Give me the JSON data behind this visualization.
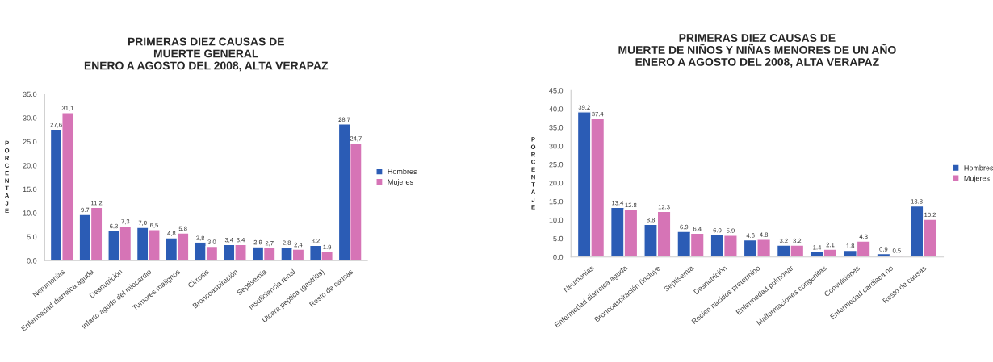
{
  "chart_data": [
    {
      "type": "bar",
      "title": "PRIMERAS DIEZ CAUSAS DE\nMUERTE GENERAL\nENERO A AGOSTO DEL 2008, ALTA VERAPAZ",
      "ylabel": "PORCENTAJE",
      "categories": [
        "Nerumonias",
        "Enfermedad diarreica aguda",
        "Desnutrición",
        "Infarto agudo del miocardio",
        "Tumores malignos",
        "Cirrosis",
        "Broncoaspiración",
        "Septisemia",
        "Insuficiencia renal",
        "Ulcera peptica (gastritis)",
        "Resto de causas"
      ],
      "series": [
        {
          "name": "Hombres",
          "color": "#2b5cb5",
          "values": [
            27.6,
            9.7,
            6.3,
            7.0,
            4.8,
            3.8,
            3.4,
            2.9,
            2.8,
            3.2,
            28.7
          ],
          "value_labels": [
            "27,6",
            "9.7",
            "6.3",
            "7,0",
            "4,8",
            "3,8",
            "3,4",
            "2,9",
            "2,8",
            "3.2",
            "28,7"
          ]
        },
        {
          "name": "Mujeres",
          "color": "#d674b6",
          "values": [
            31.1,
            11.2,
            7.3,
            6.5,
            5.8,
            3.0,
            3.4,
            2.7,
            2.4,
            1.9,
            24.7
          ],
          "value_labels": [
            "31,1",
            "11,2",
            "7,3",
            "6,5",
            "5.8",
            "3,0",
            "3,4",
            "2,7",
            "2,4",
            "1.9",
            "24,7"
          ]
        }
      ],
      "ylim": [
        0,
        35
      ],
      "yticks": [
        {
          "value": 0,
          "label": "0.0"
        },
        {
          "value": 5,
          "label": "5.0"
        },
        {
          "value": 10,
          "label": "10.0"
        },
        {
          "value": 15,
          "label": "15.0"
        },
        {
          "value": 20,
          "label": "20.0"
        },
        {
          "value": 25,
          "label": "25.0"
        },
        {
          "value": 30,
          "label": "30.0"
        },
        {
          "value": 35,
          "label": "35.0"
        }
      ],
      "grid": false,
      "legend": "right"
    },
    {
      "type": "bar",
      "title": "PRIMERAS DIEZ CAUSAS DE\nMUERTE DE NIÑOS Y NIÑAS MENORES DE UN AÑO\nENERO A AGOSTO DEL 2008, ALTA VERAPAZ",
      "ylabel": "PORCENTAJE",
      "categories": [
        "Neumonias",
        "Enfermedad diarreica aguda",
        "Broncoaspiración (incluye",
        "Septisemia",
        "Desnutrición",
        "Recien nacidos pretermino",
        "Enfermedad pulmonar",
        "Malformaciones congenitas",
        "Convulsiones",
        "Enfermedad cardiaca no",
        "Resto de causas"
      ],
      "series": [
        {
          "name": "Hombres",
          "color": "#2b5cb5",
          "values": [
            39.2,
            13.4,
            8.8,
            6.9,
            6.0,
            4.6,
            3.2,
            1.4,
            1.8,
            0.9,
            13.8
          ],
          "value_labels": [
            "39.2",
            "13.4",
            "8.8",
            "6.9",
            "6.0",
            "4.6",
            "3.2",
            "1.4",
            "1.8",
            "0.9",
            "13.8"
          ]
        },
        {
          "name": "Mujeres",
          "color": "#d674b6",
          "values": [
            37.4,
            12.8,
            12.3,
            6.4,
            5.9,
            4.8,
            3.2,
            2.1,
            4.3,
            0.5,
            10.2
          ],
          "value_labels": [
            "37.4",
            "12.8",
            "12.3",
            "6.4",
            "5.9",
            "4.8",
            "3.2",
            "2.1",
            "4.3",
            "0.5",
            "10.2"
          ]
        }
      ],
      "ylim": [
        0,
        45
      ],
      "yticks": [
        {
          "value": 0,
          "label": "0.0"
        },
        {
          "value": 5,
          "label": "5.0"
        },
        {
          "value": 10,
          "label": "10.0"
        },
        {
          "value": 15,
          "label": "15.0"
        },
        {
          "value": 20,
          "label": "20.0"
        },
        {
          "value": 25,
          "label": "25.0"
        },
        {
          "value": 30,
          "label": "30.0"
        },
        {
          "value": 35,
          "label": "35.0"
        },
        {
          "value": 40,
          "label": "40.0"
        },
        {
          "value": 45,
          "label": "45.0"
        }
      ],
      "grid": false,
      "legend": "right"
    }
  ]
}
